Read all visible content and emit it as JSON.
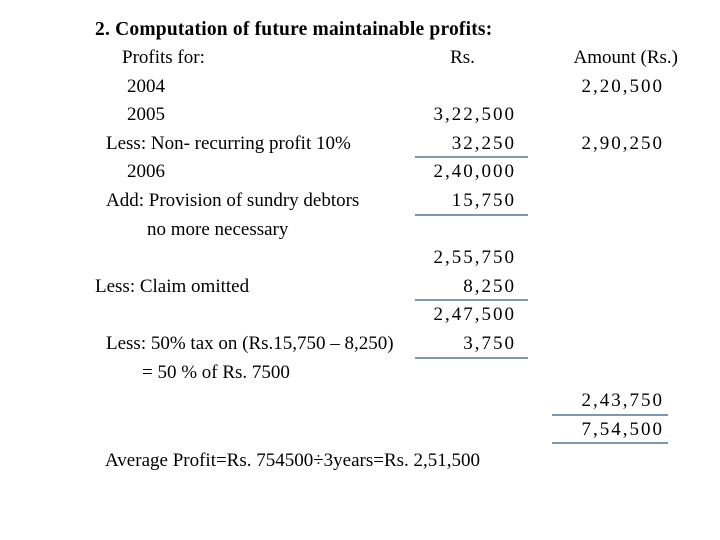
{
  "title": "2. Computation of future maintainable profits:",
  "columns": {
    "label": "Profits for:",
    "rs": "Rs.",
    "amount": "Amount (Rs.)"
  },
  "rows": [
    {
      "label": "2004",
      "indent": "year",
      "rs": "",
      "amount": "2,20,500",
      "rs_underline": false,
      "amount_underline": false
    },
    {
      "label": "2005",
      "indent": "year",
      "rs": "3,22,500",
      "amount": "",
      "rs_underline": false,
      "amount_underline": false
    },
    {
      "label": "Less: Non- recurring profit 10%",
      "indent": "less",
      "rs": "32,250",
      "amount": "2,90,250",
      "rs_underline": true,
      "amount_underline": false
    },
    {
      "label": "2006",
      "indent": "year",
      "rs": "2,40,000",
      "amount": "",
      "rs_underline": false,
      "amount_underline": false
    },
    {
      "label": "Add: Provision of sundry debtors",
      "indent": "less",
      "rs": "15,750",
      "amount": "",
      "rs_underline": true,
      "amount_underline": false
    },
    {
      "label": "no more necessary",
      "indent": "cont",
      "rs": "",
      "amount": "",
      "rs_underline": false,
      "amount_underline": false
    },
    {
      "label": "",
      "indent": "less",
      "rs": "2,55,750",
      "amount": "",
      "rs_underline": false,
      "amount_underline": false
    },
    {
      "label": "Less: Claim omitted",
      "indent": "less0",
      "rs": "8,250",
      "amount": "",
      "rs_underline": true,
      "amount_underline": false
    },
    {
      "label": "",
      "indent": "less",
      "rs": "2,47,500",
      "amount": "",
      "rs_underline": false,
      "amount_underline": false
    },
    {
      "label": "Less: 50% tax on (Rs.15,750 – 8,250)",
      "indent": "less",
      "rs": "3,750",
      "amount": "",
      "rs_underline": true,
      "amount_underline": false
    },
    {
      "label": "= 50 % of Rs. 7500",
      "indent": "cont2",
      "rs": "",
      "amount": "",
      "rs_underline": false,
      "amount_underline": false
    },
    {
      "label": "",
      "indent": "less",
      "rs": "",
      "amount": "2,43,750",
      "rs_underline": false,
      "amount_underline": true
    },
    {
      "label": "",
      "indent": "less",
      "rs": "",
      "amount": "7,54,500",
      "rs_underline": false,
      "amount_underline": true
    }
  ],
  "footer": "Average Profit=Rs. 754500÷3years=Rs. 2,51,500",
  "colors": {
    "background": "#ffffff",
    "text": "#000000",
    "rule_line": "#7f98ae"
  }
}
